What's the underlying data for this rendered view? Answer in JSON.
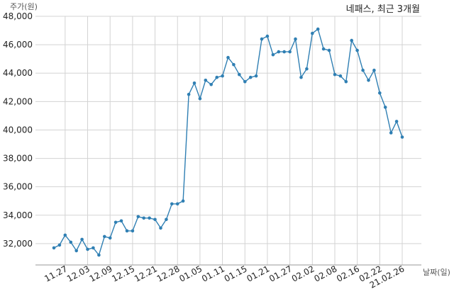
{
  "chart_data": {
    "type": "line",
    "title": "네패스, 최근 3개월",
    "ylabel": "주가(원)",
    "xlabel": "날짜(일)",
    "ylim": [
      30500,
      48000
    ],
    "yticks": [
      32000,
      34000,
      36000,
      38000,
      40000,
      42000,
      44000,
      46000,
      48000
    ],
    "ytick_labels": [
      "32,000",
      "34,000",
      "36,000",
      "38,000",
      "40,000",
      "42,000",
      "44,000",
      "46,000",
      "48,000"
    ],
    "grid": true,
    "legend": "none",
    "line_color": "#2f7fb3",
    "x_tick_labels": [
      {
        "index": 2,
        "label": "11.27"
      },
      {
        "index": 6,
        "label": "12.03"
      },
      {
        "index": 10,
        "label": "12.09"
      },
      {
        "index": 14,
        "label": "12.15"
      },
      {
        "index": 18,
        "label": "12.21"
      },
      {
        "index": 22,
        "label": "12.28"
      },
      {
        "index": 26,
        "label": "01.05"
      },
      {
        "index": 30,
        "label": "01.11"
      },
      {
        "index": 34,
        "label": "01.15"
      },
      {
        "index": 38,
        "label": "01.21"
      },
      {
        "index": 42,
        "label": "01.27"
      },
      {
        "index": 46,
        "label": "02.02"
      },
      {
        "index": 50,
        "label": "02.08"
      },
      {
        "index": 54,
        "label": "02.16"
      },
      {
        "index": 58,
        "label": "02.22"
      },
      {
        "index": 62,
        "label": "21.02.26"
      }
    ],
    "values": [
      31700,
      31900,
      32600,
      32100,
      31500,
      32300,
      31600,
      31700,
      31200,
      32500,
      32400,
      33500,
      33600,
      32900,
      32900,
      33900,
      33800,
      33800,
      33700,
      33100,
      33700,
      34800,
      34800,
      35000,
      42500,
      43300,
      42200,
      43500,
      43200,
      43700,
      43800,
      45100,
      44600,
      43900,
      43400,
      43700,
      43800,
      46400,
      46600,
      45300,
      45500,
      45500,
      45500,
      46400,
      43700,
      44300,
      46800,
      47100,
      45700,
      45600,
      43900,
      43800,
      43400,
      46300,
      45600,
      44200,
      43500,
      44200,
      42600,
      41600,
      39800,
      40600,
      39500
    ]
  }
}
